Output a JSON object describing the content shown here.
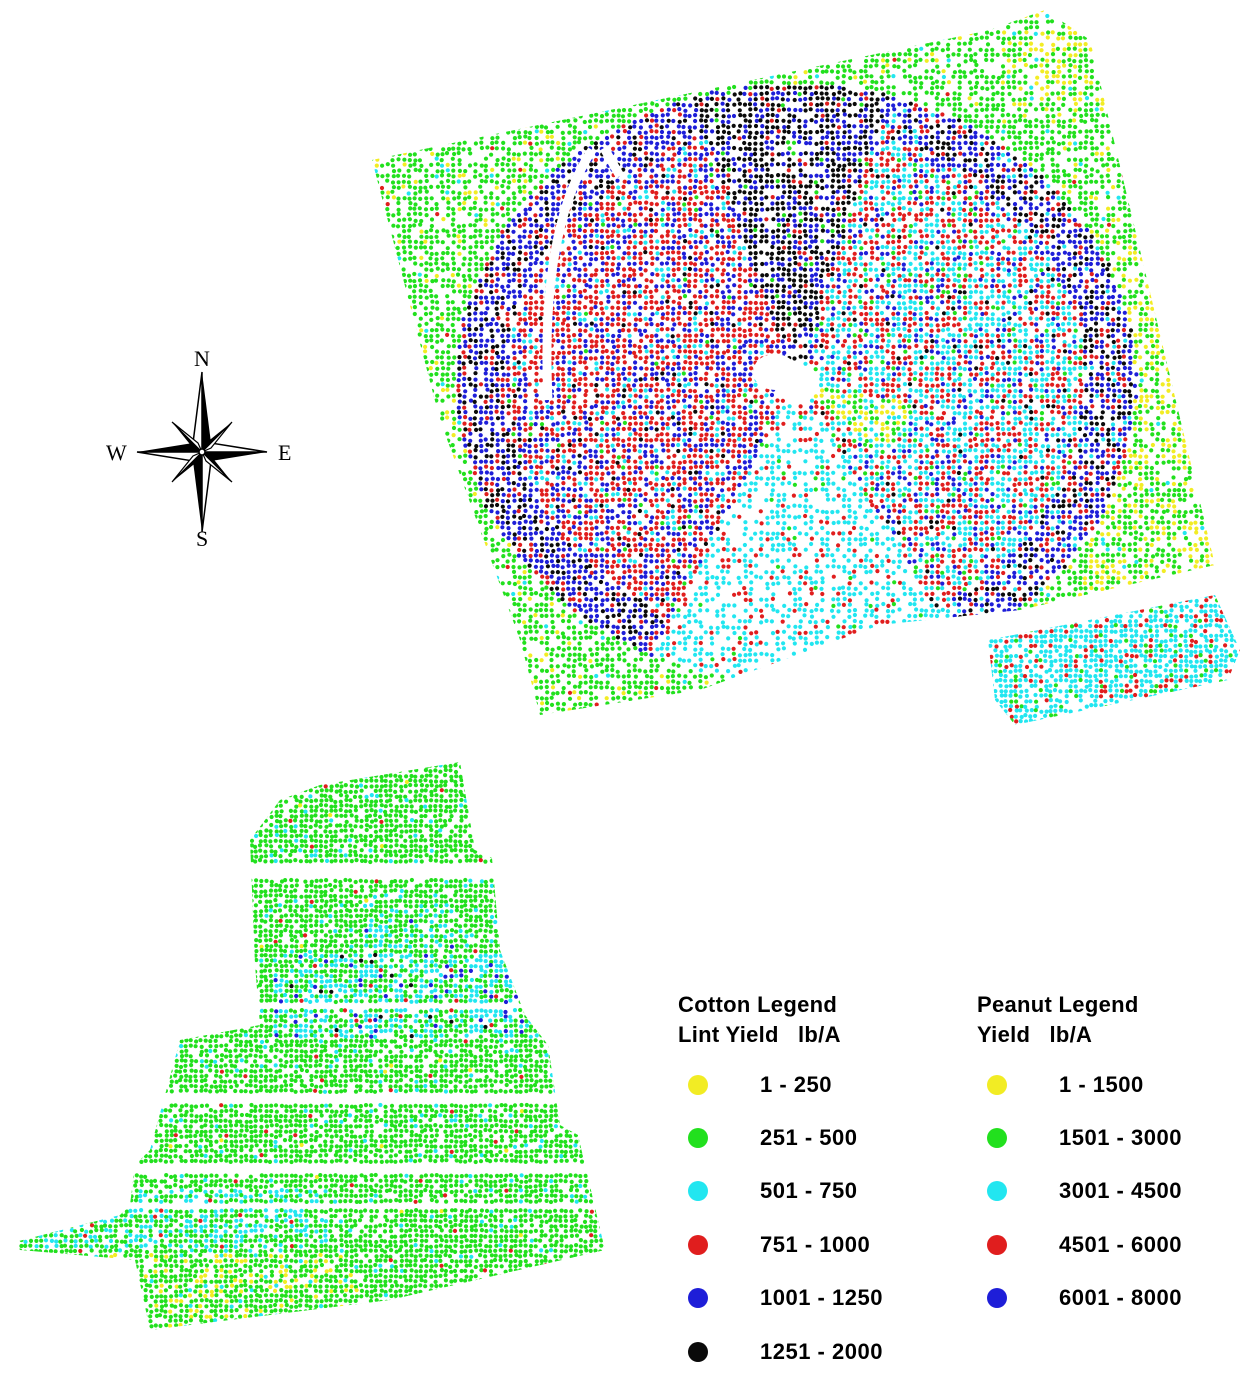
{
  "compass": {
    "north": "N",
    "south": "S",
    "east": "E",
    "west": "W"
  },
  "colors": {
    "yellow": "#f2ec24",
    "green": "#22e01e",
    "cyan": "#22e6f0",
    "red": "#e01e1e",
    "blue": "#1e1ed8",
    "black": "#0a0a0a"
  },
  "cotton_legend": {
    "title": "Cotton Legend",
    "subtitle": "Lint Yield   lb/A",
    "classes": [
      {
        "range": "1 - 250",
        "color": "#f2ec24"
      },
      {
        "range": "251 - 500",
        "color": "#22e01e"
      },
      {
        "range": "501 - 750",
        "color": "#22e6f0"
      },
      {
        "range": "751 - 1000",
        "color": "#e01e1e"
      },
      {
        "range": "1001 - 1250",
        "color": "#1e1ed8"
      },
      {
        "range": "1251 - 2000",
        "color": "#0a0a0a"
      }
    ]
  },
  "peanut_legend": {
    "title": "Peanut Legend",
    "subtitle": "Yield   lb/A",
    "classes": [
      {
        "range": "1 - 1500",
        "color": "#f2ec24"
      },
      {
        "range": "1501 - 3000",
        "color": "#22e01e"
      },
      {
        "range": "3001 - 4500",
        "color": "#22e6f0"
      },
      {
        "range": "4501 - 6000",
        "color": "#e01e1e"
      },
      {
        "range": "6001 - 8000",
        "color": "#1e1ed8"
      }
    ]
  }
}
